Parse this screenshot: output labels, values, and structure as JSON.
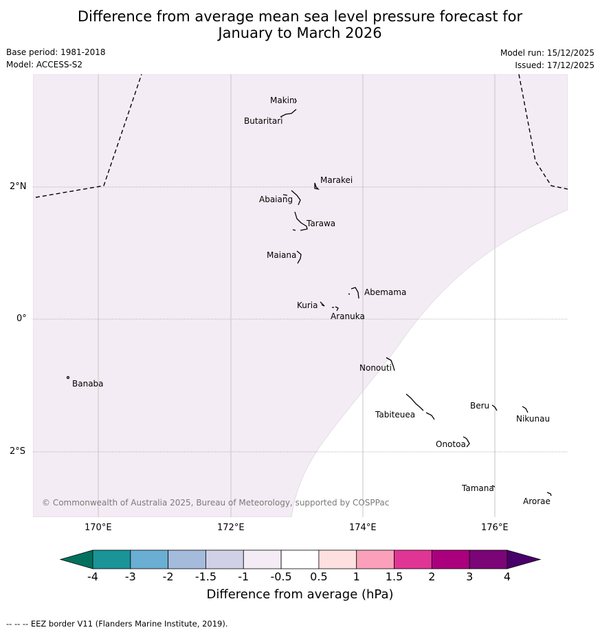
{
  "title": {
    "line1": "Difference from average mean sea level pressure forecast for",
    "line2": "January to March 2026"
  },
  "meta": {
    "base_period": "Base period: 1981-2018",
    "model": "Model: ACCESS-S2",
    "model_run": "Model run: 15/12/2025",
    "issued": "Issued: 17/12/2025"
  },
  "map": {
    "lat_labels": [
      "2°N",
      "0°",
      "2°S"
    ],
    "lon_labels": [
      "170°E",
      "172°E",
      "174°E",
      "176°E"
    ],
    "places": [
      "Makin",
      "Butaritari",
      "Marakei",
      "Abaiang",
      "Tarawa",
      "Maiana",
      "Abemama",
      "Kuria",
      "Aranuka",
      "Nonouti",
      "Banaba",
      "Beru",
      "Tabiteuea",
      "Nikunau",
      "Onotoa",
      "Tamana",
      "Arorae"
    ],
    "fill_category": "-1 to -0.5",
    "fill_color": "#f4ecf4",
    "copyright": "© Commonwealth of Australia 2025, Bureau of Meteorology, supported by COSPPac"
  },
  "colorbar": {
    "title": "Difference from average (hPa)",
    "ticks": [
      "-4",
      "-3",
      "-2",
      "-1.5",
      "-1",
      "-0.5",
      "0.5",
      "1",
      "1.5",
      "2",
      "3",
      "4"
    ],
    "colors": [
      "#1a9497",
      "#6aaed3",
      "#a4bbdc",
      "#d0d0e6",
      "#f4ecf4",
      "#ffffff",
      "#fde0df",
      "#fba0ba",
      "#e13596",
      "#ab007d",
      "#7b0577"
    ],
    "under_color": "#02715e",
    "over_color": "#4a006a"
  },
  "footer": {
    "eez_note": "--  --  -- EEZ border V11 (Flanders Marine Institute, 2019)."
  }
}
